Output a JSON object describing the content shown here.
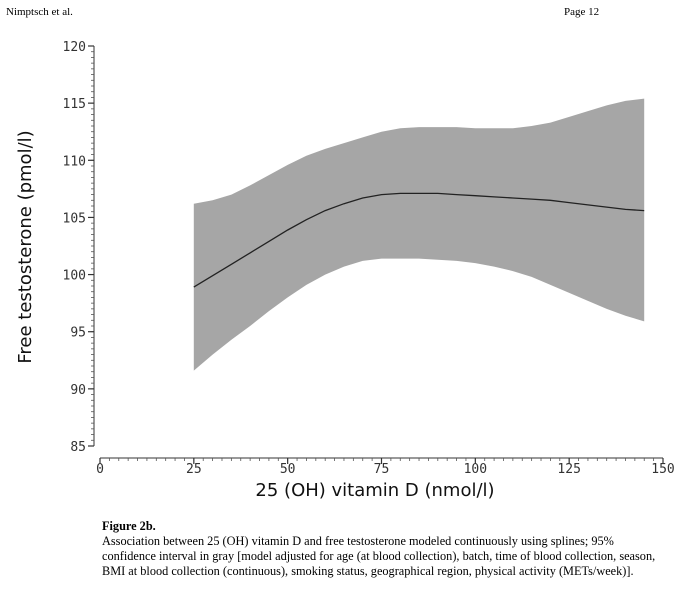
{
  "header": {
    "author": "Nimptsch et al.",
    "page": "Page 12"
  },
  "chart_data": {
    "type": "line",
    "title": "",
    "xlabel": "25 (OH) vitamin D (nmol/l)",
    "ylabel": "Free testosterone (pmol/l)",
    "xlim": [
      0,
      150
    ],
    "ylim": [
      85,
      120
    ],
    "x_ticks": [
      0,
      25,
      50,
      75,
      100,
      125,
      150
    ],
    "y_ticks": [
      85,
      90,
      95,
      100,
      105,
      110,
      115,
      120
    ],
    "grid": false,
    "band_color": "#a6a6a6",
    "line_color": "#222222",
    "series": [
      {
        "name": "Spline estimate",
        "x": [
          25,
          30,
          35,
          40,
          45,
          50,
          55,
          60,
          65,
          70,
          75,
          80,
          85,
          90,
          95,
          100,
          105,
          110,
          115,
          120,
          125,
          130,
          135,
          140,
          145
        ],
        "y": [
          98.9,
          99.9,
          100.9,
          101.9,
          102.9,
          103.9,
          104.8,
          105.6,
          106.2,
          106.7,
          107.0,
          107.1,
          107.1,
          107.1,
          107.0,
          106.9,
          106.8,
          106.7,
          106.6,
          106.5,
          106.3,
          106.1,
          105.9,
          105.7,
          105.6
        ]
      },
      {
        "name": "95% confidence interval",
        "x": [
          25,
          30,
          35,
          40,
          45,
          50,
          55,
          60,
          65,
          70,
          75,
          80,
          85,
          90,
          95,
          100,
          105,
          110,
          115,
          120,
          125,
          130,
          135,
          140,
          145
        ],
        "lower": [
          91.6,
          93.0,
          94.3,
          95.5,
          96.8,
          98.0,
          99.1,
          100.0,
          100.7,
          101.2,
          101.4,
          101.4,
          101.4,
          101.3,
          101.2,
          101.0,
          100.7,
          100.3,
          99.8,
          99.1,
          98.4,
          97.7,
          97.0,
          96.4,
          95.9
        ],
        "upper": [
          106.2,
          106.5,
          107.0,
          107.8,
          108.7,
          109.6,
          110.4,
          111.0,
          111.5,
          112.0,
          112.5,
          112.8,
          112.9,
          112.9,
          112.9,
          112.8,
          112.8,
          112.8,
          113.0,
          113.3,
          113.8,
          114.3,
          114.8,
          115.2,
          115.4
        ]
      }
    ]
  },
  "caption": {
    "title": "Figure 2b.",
    "text": "Association between 25 (OH) vitamin D and free testosterone modeled continuously using splines; 95% confidence interval in gray [model adjusted for age (at blood collection), batch, time of blood collection, season, BMI at blood collection (continuous), smoking status, geographical region, physical activity (METs/week)]."
  }
}
